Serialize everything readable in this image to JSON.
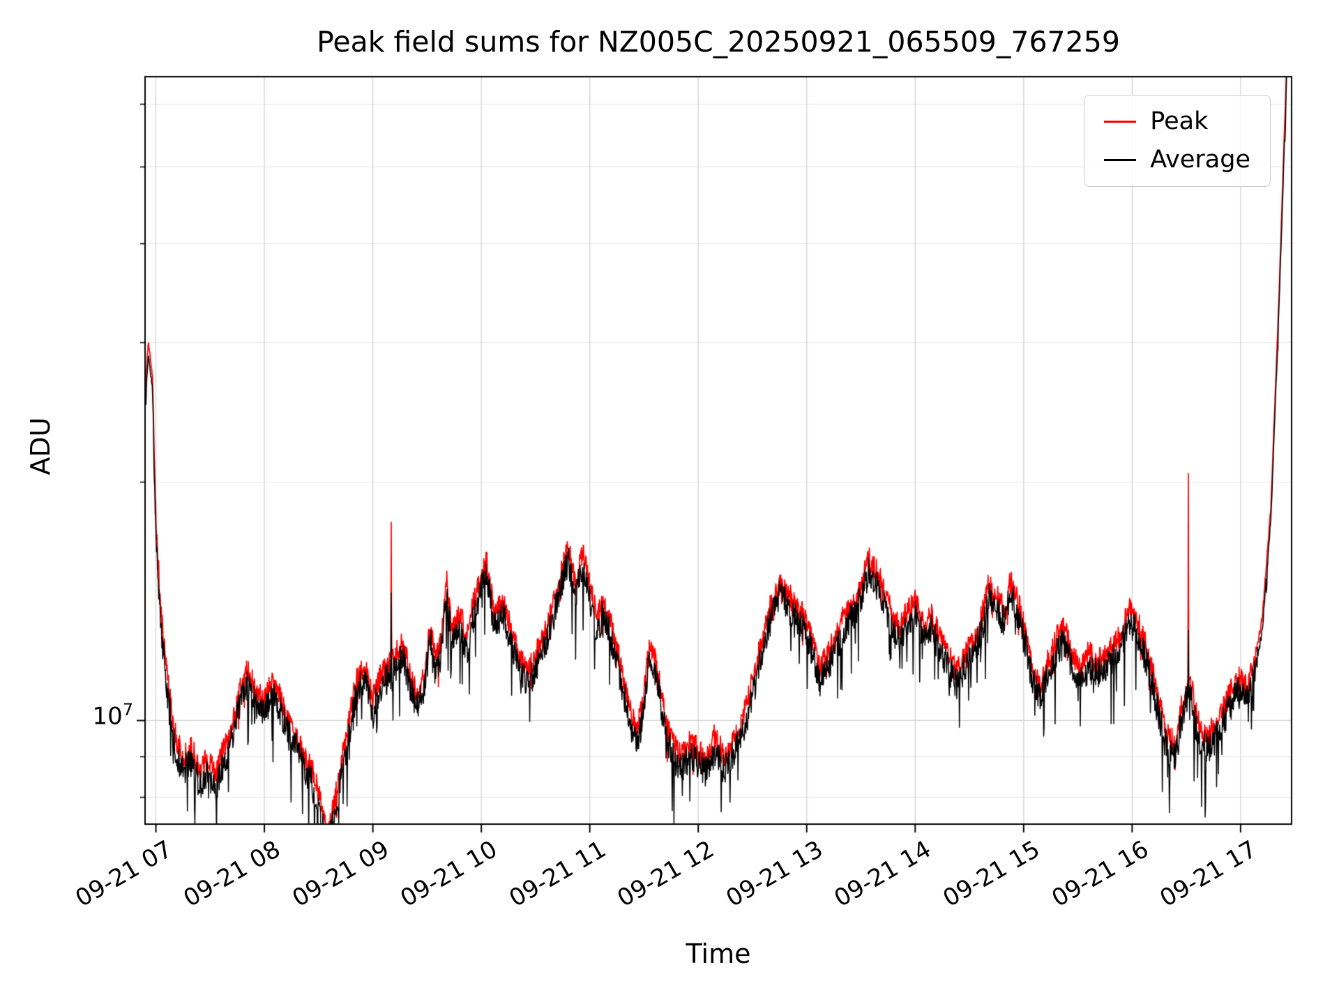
{
  "figure": {
    "background": "#ffffff"
  },
  "colors": {
    "peak": "#ff0000",
    "average": "#000000",
    "frame": "#000000",
    "grid_major": "#cfcfcf",
    "grid_minor": "#e8e8e8"
  },
  "chart_data": {
    "type": "line",
    "title": "Peak field sums for NZ005C_20250921_065509_767259",
    "xlabel": "Time",
    "ylabel": "ADU",
    "y_scale": "log",
    "grid": true,
    "ylim": [
      7400000,
      65000000
    ],
    "xlim_hours": [
      6.9,
      17.47
    ],
    "y_tick": {
      "base": "10",
      "exp": "7",
      "value": 10000000
    },
    "y_minor_values": [
      8000000,
      9000000,
      20000000,
      30000000,
      40000000,
      50000000,
      60000000
    ],
    "x_ticks": [
      {
        "hour": 7,
        "label": "09-21 07"
      },
      {
        "hour": 8,
        "label": "09-21 08"
      },
      {
        "hour": 9,
        "label": "09-21 09"
      },
      {
        "hour": 10,
        "label": "09-21 10"
      },
      {
        "hour": 11,
        "label": "09-21 11"
      },
      {
        "hour": 12,
        "label": "09-21 12"
      },
      {
        "hour": 13,
        "label": "09-21 13"
      },
      {
        "hour": 14,
        "label": "09-21 14"
      },
      {
        "hour": 15,
        "label": "09-21 15"
      },
      {
        "hour": 16,
        "label": "09-21 16"
      },
      {
        "hour": 17,
        "label": "09-21 17"
      }
    ],
    "legend": {
      "position": "upper right",
      "entries": [
        {
          "label": "Peak",
          "color": "#ff0000"
        },
        {
          "label": "Average",
          "color": "#000000"
        }
      ]
    },
    "series": {
      "units": "ADU, values in millions (1e6)",
      "peak_ratio": 1.04,
      "time_hours": [
        6.9,
        6.93,
        6.97,
        7.0,
        7.05,
        7.1,
        7.17,
        7.25,
        7.33,
        7.4,
        7.47,
        7.55,
        7.62,
        7.7,
        7.78,
        7.85,
        7.92,
        8.0,
        8.07,
        8.15,
        8.22,
        8.3,
        8.37,
        8.45,
        8.52,
        8.58,
        8.63,
        8.7,
        8.78,
        8.85,
        8.92,
        9.0,
        9.05,
        9.12,
        9.2,
        9.28,
        9.33,
        9.4,
        9.47,
        9.53,
        9.58,
        9.63,
        9.68,
        9.73,
        9.8,
        9.87,
        9.93,
        10.0,
        10.05,
        10.12,
        10.2,
        10.28,
        10.35,
        10.43,
        10.5,
        10.58,
        10.65,
        10.73,
        10.8,
        10.87,
        10.93,
        11.0,
        11.07,
        11.13,
        11.2,
        11.28,
        11.35,
        11.42,
        11.48,
        11.55,
        11.62,
        11.7,
        11.78,
        11.85,
        11.93,
        12.0,
        12.08,
        12.15,
        12.23,
        12.3,
        12.38,
        12.45,
        12.53,
        12.6,
        12.68,
        12.75,
        12.82,
        12.9,
        12.97,
        13.05,
        13.12,
        13.2,
        13.28,
        13.35,
        13.43,
        13.5,
        13.57,
        13.63,
        13.7,
        13.78,
        13.85,
        13.93,
        14.0,
        14.08,
        14.15,
        14.23,
        14.3,
        14.38,
        14.45,
        14.53,
        14.6,
        14.68,
        14.75,
        14.82,
        14.88,
        14.95,
        15.02,
        15.08,
        15.15,
        15.22,
        15.3,
        15.38,
        15.45,
        15.52,
        15.6,
        15.68,
        15.75,
        15.82,
        15.9,
        15.97,
        16.03,
        16.1,
        16.18,
        16.25,
        16.32,
        16.4,
        16.47,
        16.53,
        16.6,
        16.68,
        16.75,
        16.82,
        16.9,
        16.97,
        17.05,
        17.13,
        17.2,
        17.28,
        17.35,
        17.42,
        17.47
      ],
      "average_e6": [
        25.0,
        29.0,
        26.0,
        17.0,
        13.0,
        11.0,
        9.3,
        8.6,
        8.9,
        8.3,
        8.6,
        8.2,
        8.8,
        9.4,
        10.6,
        11.2,
        10.4,
        10.2,
        10.8,
        10.3,
        9.6,
        9.2,
        8.6,
        8.3,
        7.6,
        6.9,
        7.4,
        8.3,
        9.6,
        10.9,
        11.3,
        10.2,
        10.8,
        11.2,
        11.6,
        12.1,
        11.2,
        10.4,
        10.9,
        12.6,
        11.4,
        12.2,
        14.4,
        12.4,
        13.2,
        12.2,
        13.6,
        14.6,
        15.3,
        13.1,
        13.6,
        12.4,
        11.6,
        11.1,
        11.6,
        12.3,
        13.3,
        14.6,
        16.0,
        14.3,
        15.7,
        14.2,
        12.9,
        13.8,
        12.6,
        11.4,
        10.2,
        9.4,
        9.9,
        11.9,
        11.3,
        9.6,
        8.9,
        8.7,
        9.1,
        8.8,
        8.6,
        9.2,
        8.7,
        8.9,
        9.4,
        10.1,
        11.2,
        12.4,
        13.6,
        14.4,
        14.0,
        13.4,
        13.1,
        12.2,
        11.2,
        11.7,
        12.4,
        13.1,
        13.6,
        14.3,
        15.4,
        15.0,
        14.2,
        13.2,
        12.6,
        13.2,
        13.6,
        12.7,
        13.1,
        12.2,
        11.7,
        11.1,
        11.6,
        12.1,
        12.8,
        14.3,
        13.8,
        13.3,
        14.4,
        13.6,
        12.4,
        11.2,
        10.6,
        11.4,
        12.2,
        12.6,
        11.6,
        11.2,
        11.7,
        11.4,
        11.6,
        11.9,
        12.4,
        13.3,
        13.0,
        12.3,
        11.2,
        10.1,
        9.2,
        9.0,
        10.3,
        11.0,
        9.6,
        9.2,
        9.4,
        9.8,
        10.4,
        10.9,
        10.6,
        11.4,
        13.0,
        18.0,
        32.0,
        62.0,
        120.0
      ],
      "spikes": [
        {
          "t_hours": 9.17,
          "peak_e6": 17.8,
          "average_e6": 14.5
        },
        {
          "t_hours": 16.52,
          "peak_e6": 20.5,
          "average_e6": 13.0
        }
      ]
    },
    "noise": {
      "seed": 20250921,
      "jitter_dex": 0.02,
      "dip_prob": 0.055,
      "dip_dex": 0.05,
      "samples": 2600
    }
  }
}
